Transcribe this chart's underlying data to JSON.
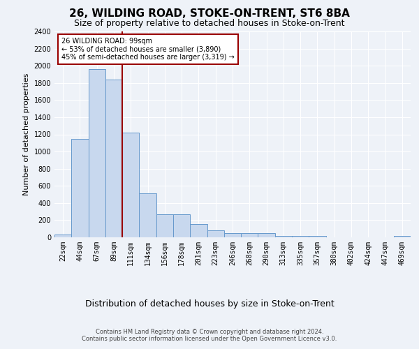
{
  "title": "26, WILDING ROAD, STOKE-ON-TRENT, ST6 8BA",
  "subtitle": "Size of property relative to detached houses in Stoke-on-Trent",
  "xlabel": "Distribution of detached houses by size in Stoke-on-Trent",
  "ylabel": "Number of detached properties",
  "bin_labels": [
    "22sqm",
    "44sqm",
    "67sqm",
    "89sqm",
    "111sqm",
    "134sqm",
    "156sqm",
    "178sqm",
    "201sqm",
    "223sqm",
    "246sqm",
    "268sqm",
    "290sqm",
    "313sqm",
    "335sqm",
    "357sqm",
    "380sqm",
    "402sqm",
    "424sqm",
    "447sqm",
    "469sqm"
  ],
  "bar_values": [
    30,
    1150,
    1960,
    1840,
    1220,
    510,
    265,
    265,
    155,
    80,
    50,
    45,
    45,
    20,
    15,
    20,
    0,
    0,
    0,
    0,
    20
  ],
  "bar_color": "#c8d8ee",
  "bar_edge_color": "#6699cc",
  "vline_index": 3,
  "annotation_line1": "26 WILDING ROAD: 99sqm",
  "annotation_line2": "← 53% of detached houses are smaller (3,890)",
  "annotation_line3": "45% of semi-detached houses are larger (3,319) →",
  "vline_color": "#990000",
  "annotation_box_facecolor": "#ffffff",
  "annotation_box_edgecolor": "#990000",
  "ylim": [
    0,
    2400
  ],
  "yticks": [
    0,
    200,
    400,
    600,
    800,
    1000,
    1200,
    1400,
    1600,
    1800,
    2000,
    2200,
    2400
  ],
  "footer_line1": "Contains HM Land Registry data © Crown copyright and database right 2024.",
  "footer_line2": "Contains public sector information licensed under the Open Government Licence v3.0.",
  "bg_color": "#eef2f8",
  "plot_bg_color": "#eef2f8",
  "title_fontsize": 11,
  "subtitle_fontsize": 9,
  "ylabel_fontsize": 8,
  "xlabel_fontsize": 9,
  "tick_fontsize": 7,
  "annotation_fontsize": 7,
  "footer_fontsize": 6
}
